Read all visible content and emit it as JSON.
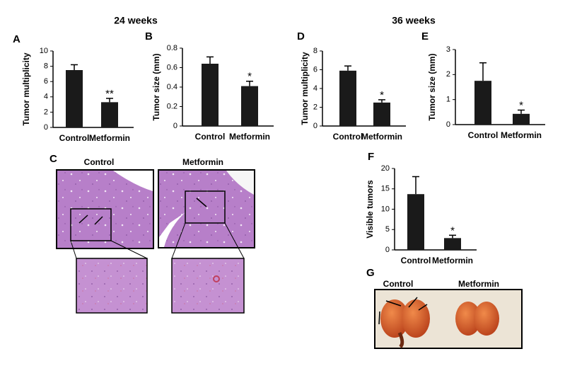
{
  "headings": [
    "24 weeks",
    "36 weeks"
  ],
  "chart_data": [
    {
      "type": "bar",
      "panel": "A",
      "ylabel": "Tumor multiplicity",
      "categories": [
        "Control",
        "Metformin"
      ],
      "values": [
        7.5,
        3.3
      ],
      "errors": [
        0.7,
        0.5
      ],
      "significance": "**",
      "color": "#1a1a1a",
      "ylim": [
        0,
        10
      ],
      "yticks": [
        0,
        2,
        4,
        6,
        8,
        10
      ]
    },
    {
      "type": "bar",
      "panel": "B",
      "ylabel": "Tumor size (mm)",
      "categories": [
        "Control",
        "Metformin"
      ],
      "values": [
        0.64,
        0.41
      ],
      "errors": [
        0.07,
        0.05
      ],
      "significance": "*",
      "color": "#1a1a1a",
      "ylim": [
        0,
        0.8
      ],
      "yticks": [
        0,
        0.2,
        0.4,
        0.6,
        0.8
      ]
    },
    {
      "type": "bar",
      "panel": "D",
      "ylabel": "Tumor multiplicity",
      "categories": [
        "Control",
        "Metformin"
      ],
      "values": [
        5.9,
        2.5
      ],
      "errors": [
        0.5,
        0.3
      ],
      "significance": "*",
      "color": "#1a1a1a",
      "ylim": [
        0,
        8
      ],
      "yticks": [
        0,
        2,
        4,
        6,
        8
      ]
    },
    {
      "type": "bar",
      "panel": "E",
      "ylabel": "Tumor size (mm)",
      "categories": [
        "Control",
        "Metformin"
      ],
      "values": [
        1.75,
        0.43
      ],
      "errors": [
        0.72,
        0.15
      ],
      "significance": "*",
      "color": "#1a1a1a",
      "ylim": [
        0,
        3
      ],
      "yticks": [
        0,
        1,
        2,
        3
      ]
    },
    {
      "type": "bar",
      "panel": "F",
      "ylabel": "Visible tumors",
      "categories": [
        "Control",
        "Metformin"
      ],
      "values": [
        13.7,
        2.9
      ],
      "errors": [
        4.3,
        0.7
      ],
      "significance": "*",
      "color": "#1a1a1a",
      "ylim": [
        0,
        20
      ],
      "yticks": [
        0,
        5,
        10,
        15,
        20
      ]
    }
  ],
  "histology": {
    "panel": "C",
    "labels": [
      "Control",
      "Metformin"
    ]
  },
  "photo": {
    "panel": "G",
    "labels": [
      "Control",
      "Metformin"
    ]
  }
}
